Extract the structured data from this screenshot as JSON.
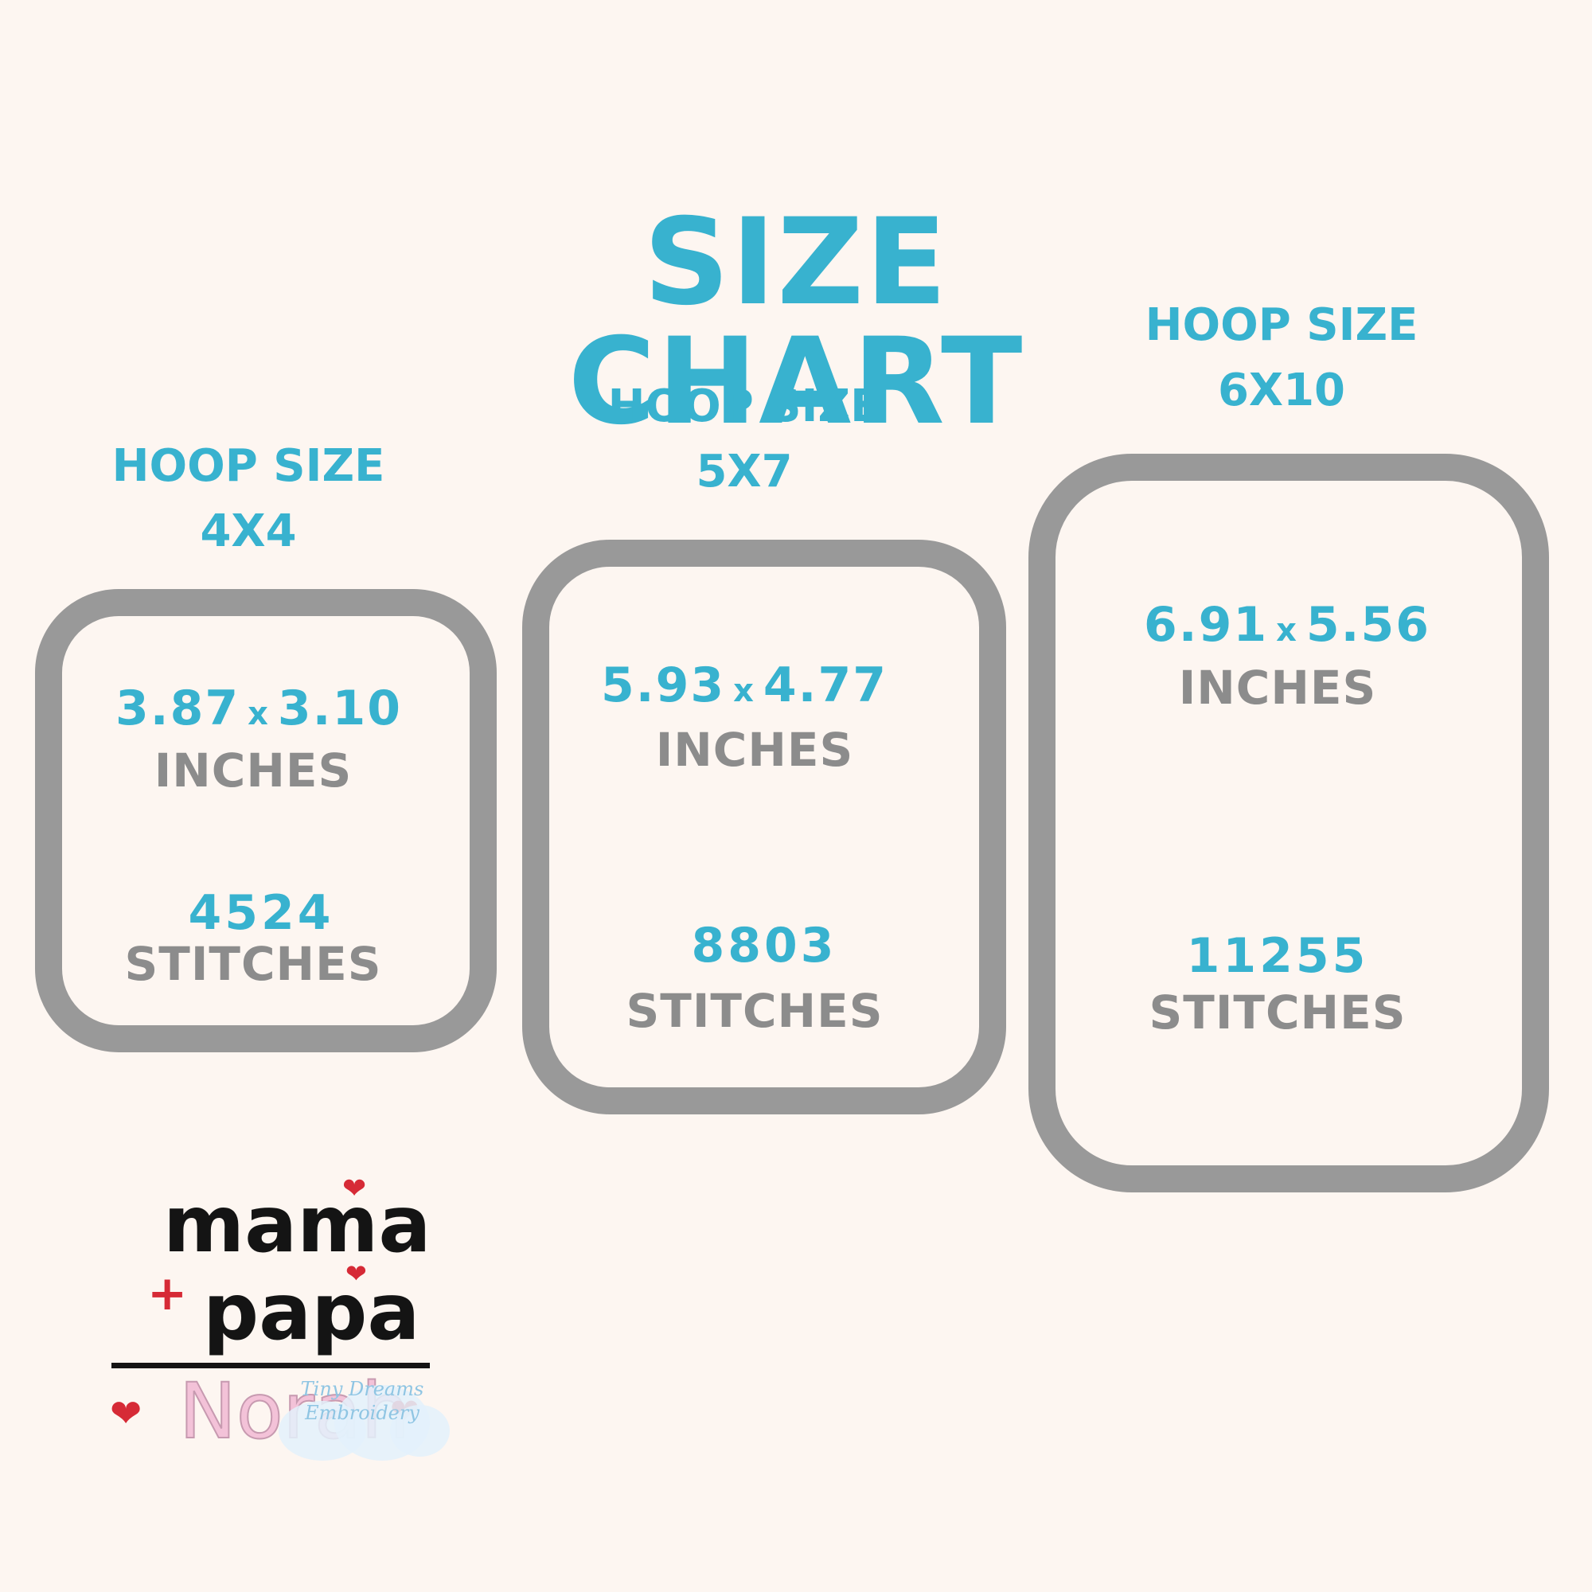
{
  "title": "SIZE CHART",
  "colors": {
    "accent": "#38b2cf",
    "gray": "#999999",
    "background": "#fdf6f1",
    "heart": "#d62a36",
    "name_pink": "#f3c2d8",
    "watermark_blue": "#8fc5e3"
  },
  "hoops": [
    {
      "label_line1": "HOOP SIZE",
      "label_line2": "4X4",
      "dim_w": "3.87",
      "dim_sep": "x",
      "dim_h": "3.10",
      "dim_unit": "INCHES",
      "stitches": "4524",
      "stitches_label": "STITCHES"
    },
    {
      "label_line1": "HOOP SIZE",
      "label_line2": "5X7",
      "dim_w": "5.93",
      "dim_sep": "x",
      "dim_h": "4.77",
      "dim_unit": "INCHES",
      "stitches": "8803",
      "stitches_label": "STITCHES"
    },
    {
      "label_line1": "HOOP SIZE",
      "label_line2": "6X10",
      "dim_w": "6.91",
      "dim_sep": "x",
      "dim_h": "5.56",
      "dim_unit": "INCHES",
      "stitches": "11255",
      "stitches_label": "STITCHES"
    }
  ],
  "design": {
    "line1": "mama",
    "plus": "+",
    "line2": "papa",
    "name": "Norah",
    "heart_icon": "heart-icon"
  },
  "watermark": {
    "line1": "Tiny Dreams",
    "line2": "Embroidery"
  }
}
